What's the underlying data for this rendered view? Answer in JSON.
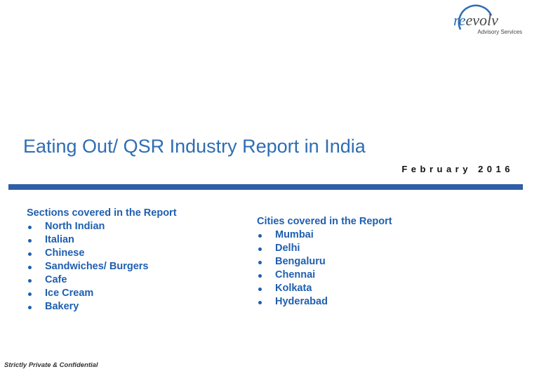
{
  "logo": {
    "parts": [
      "re",
      "evolv"
    ],
    "tagline": "Advisory Services"
  },
  "title": "Eating Out/ QSR Industry Report in India",
  "date": "February 2016",
  "sections": {
    "heading": "Sections covered in the Report",
    "items": [
      "North Indian",
      "Italian",
      "Chinese",
      "Sandwiches/ Burgers",
      "Cafe",
      "Ice Cream",
      "Bakery"
    ]
  },
  "cities": {
    "heading": "Cities covered in the Report",
    "items": [
      "Mumbai",
      "Delhi",
      "Bengaluru",
      "Chennai",
      "Kolkata",
      "Hyderabad"
    ]
  },
  "footer": "Strictly Private & Confidential"
}
